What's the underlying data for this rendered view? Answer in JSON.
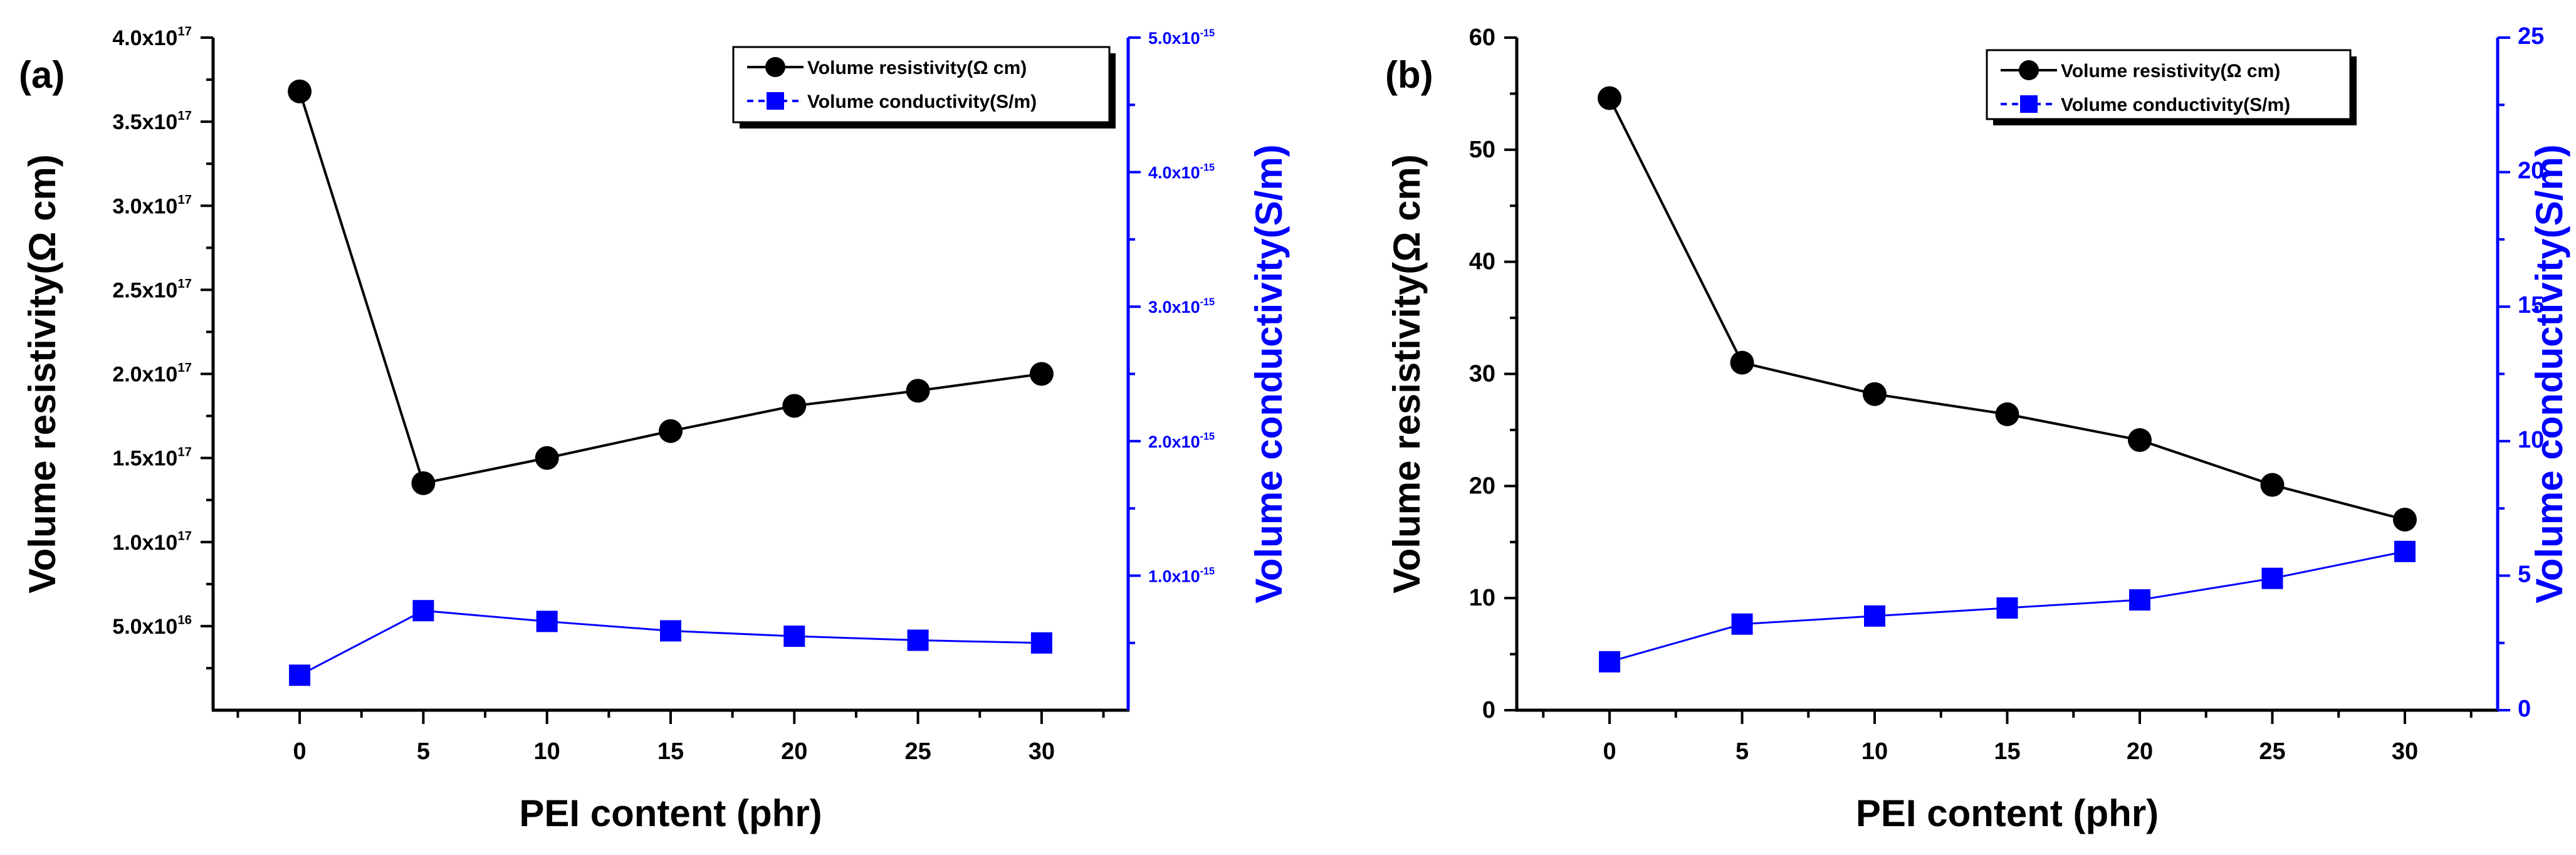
{
  "colors": {
    "left_axis": "#000000",
    "right_axis": "#0000ff"
  },
  "chart_data": [
    {
      "type": "line",
      "panel_label": "(a)",
      "xlabel": "PEI content (phr)",
      "ylabel_left": "Volume resistivity(Ω cm)",
      "ylabel_right": "Volume conductivity(S/m)",
      "xlim": [
        -3.5,
        33.5
      ],
      "ylim_left": [
        0,
        4e+17
      ],
      "ylim_right": [
        0,
        5e-15
      ],
      "x_ticks": [
        0,
        5,
        10,
        15,
        20,
        25,
        30
      ],
      "y_ticks_left": [
        {
          "value": 5e+16,
          "mant": "5.0x10",
          "exp": "16"
        },
        {
          "value": 1e+17,
          "mant": "1.0x10",
          "exp": "17"
        },
        {
          "value": 1.5e+17,
          "mant": "1.5x10",
          "exp": "17"
        },
        {
          "value": 2e+17,
          "mant": "2.0x10",
          "exp": "17"
        },
        {
          "value": 2.5e+17,
          "mant": "2.5x10",
          "exp": "17"
        },
        {
          "value": 3e+17,
          "mant": "3.0x10",
          "exp": "17"
        },
        {
          "value": 3.5e+17,
          "mant": "3.5x10",
          "exp": "17"
        },
        {
          "value": 4e+17,
          "mant": "4.0x10",
          "exp": "17"
        }
      ],
      "y_ticks_right": [
        {
          "value": 1e-15,
          "mant": "1.0x10",
          "exp": "-15"
        },
        {
          "value": 2e-15,
          "mant": "2.0x10",
          "exp": "-15"
        },
        {
          "value": 3e-15,
          "mant": "3.0x10",
          "exp": "-15"
        },
        {
          "value": 4e-15,
          "mant": "4.0x10",
          "exp": "-15"
        },
        {
          "value": 5e-15,
          "mant": "5.0x10",
          "exp": "-15"
        }
      ],
      "legend_position": "top-right",
      "series": [
        {
          "name": "Volume resistivity(Ω cm)",
          "axis": "left",
          "marker": "circle",
          "x": [
            0,
            5,
            10,
            15,
            20,
            25,
            30
          ],
          "values": [
            3.68e+17,
            1.35e+17,
            1.5e+17,
            1.66e+17,
            1.81e+17,
            1.9e+17,
            2e+17
          ]
        },
        {
          "name": "Volume conductivity(S/m)",
          "axis": "right",
          "marker": "square",
          "x": [
            0,
            5,
            10,
            15,
            20,
            25,
            30
          ],
          "values": [
            2.6e-16,
            7.4e-16,
            6.6e-16,
            5.9e-16,
            5.5e-16,
            5.2e-16,
            5e-16
          ]
        }
      ]
    },
    {
      "type": "line",
      "panel_label": "(b)",
      "xlabel": "PEI content (phr)",
      "ylabel_left": "Volume resistivity(Ω cm)",
      "ylabel_right": "Volume conductivity(S/m)",
      "xlim": [
        -3.5,
        33.5
      ],
      "ylim_left": [
        0,
        60
      ],
      "ylim_right": [
        0,
        25
      ],
      "x_ticks": [
        0,
        5,
        10,
        15,
        20,
        25,
        30
      ],
      "y_ticks_left": [
        {
          "value": 0,
          "mant": "0",
          "exp": ""
        },
        {
          "value": 10,
          "mant": "10",
          "exp": ""
        },
        {
          "value": 20,
          "mant": "20",
          "exp": ""
        },
        {
          "value": 30,
          "mant": "30",
          "exp": ""
        },
        {
          "value": 40,
          "mant": "40",
          "exp": ""
        },
        {
          "value": 50,
          "mant": "50",
          "exp": ""
        },
        {
          "value": 60,
          "mant": "60",
          "exp": ""
        }
      ],
      "y_ticks_right": [
        {
          "value": 0,
          "mant": "0",
          "exp": ""
        },
        {
          "value": 5,
          "mant": "5",
          "exp": ""
        },
        {
          "value": 10,
          "mant": "10",
          "exp": ""
        },
        {
          "value": 15,
          "mant": "15",
          "exp": ""
        },
        {
          "value": 20,
          "mant": "20",
          "exp": ""
        },
        {
          "value": 25,
          "mant": "25",
          "exp": ""
        }
      ],
      "legend_position": "top-right",
      "series": [
        {
          "name": "Volume resistivity(Ω cm)",
          "axis": "left",
          "marker": "circle",
          "x": [
            0,
            5,
            10,
            15,
            20,
            25,
            30
          ],
          "values": [
            54.6,
            31.0,
            28.2,
            26.4,
            24.1,
            20.1,
            17.0
          ]
        },
        {
          "name": "Volume conductivity(S/m)",
          "axis": "right",
          "marker": "square",
          "x": [
            0,
            5,
            10,
            15,
            20,
            25,
            30
          ],
          "values": [
            1.8,
            3.2,
            3.5,
            3.8,
            4.1,
            4.9,
            5.9
          ]
        }
      ]
    }
  ]
}
